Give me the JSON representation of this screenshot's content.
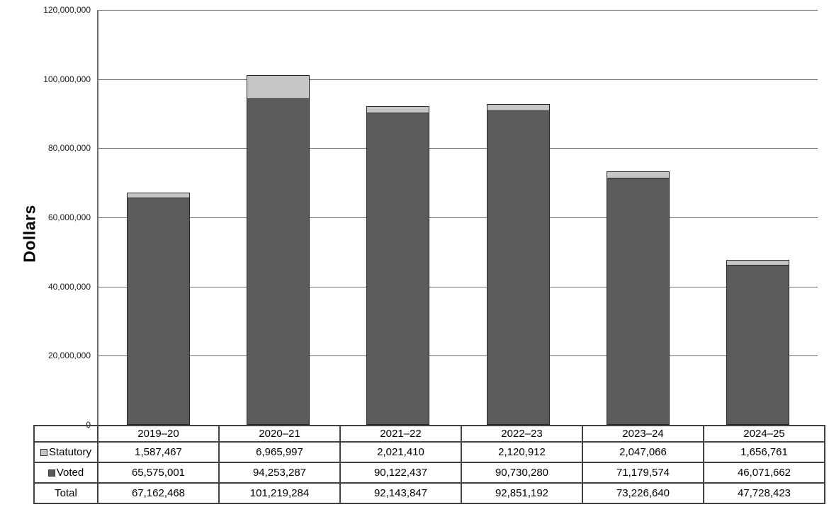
{
  "chart_data": {
    "type": "bar",
    "stacked": true,
    "title": "",
    "xlabel": "",
    "ylabel": "Dollars",
    "ylim": [
      0,
      120000000
    ],
    "ytick_interval": 20000000,
    "ytick_labels": [
      "0",
      "20,000,000",
      "40,000,000",
      "60,000,000",
      "80,000,000",
      "100,000,000",
      "120,000,000"
    ],
    "grid": true,
    "legend_position": "table-row-headers",
    "categories": [
      "2019–20",
      "2020–21",
      "2021–22",
      "2022–23",
      "2023–24",
      "2024–25"
    ],
    "series": [
      {
        "name": "Statutory",
        "color": "#c6c6c6",
        "values": [
          1587467,
          6965997,
          2021410,
          2120912,
          2047066,
          1656761
        ]
      },
      {
        "name": "Voted",
        "color": "#5b5b5b",
        "values": [
          65575001,
          94253287,
          90122437,
          90730280,
          71179574,
          46071662
        ]
      }
    ],
    "totals": [
      67162468,
      101219284,
      92143847,
      92851192,
      73226640,
      47728423
    ]
  },
  "table": {
    "header_years": [
      "2019–20",
      "2020–21",
      "2021–22",
      "2022–23",
      "2023–24",
      "2024–25"
    ],
    "rows": [
      {
        "label": "Statutory",
        "swatch": "#c6c6c6",
        "values": [
          "1,587,467",
          "6,965,997",
          "2,021,410",
          "2,120,912",
          "2,047,066",
          "1,656,761"
        ]
      },
      {
        "label": "Voted",
        "swatch": "#5b5b5b",
        "values": [
          "65,575,001",
          "94,253,287",
          "90,122,437",
          "90,730,280",
          "71,179,574",
          "46,071,662"
        ]
      },
      {
        "label": "Total",
        "swatch": null,
        "values": [
          "67,162,468",
          "101,219,284",
          "92,143,847",
          "92,851,192",
          "73,226,640",
          "47,728,423"
        ]
      }
    ]
  },
  "colors": {
    "statutory": "#c6c6c6",
    "voted": "#5b5b5b",
    "bar_border": "#262626",
    "gridline": "#6f6f6f",
    "table_border": "#414141",
    "background": "#ffffff"
  }
}
